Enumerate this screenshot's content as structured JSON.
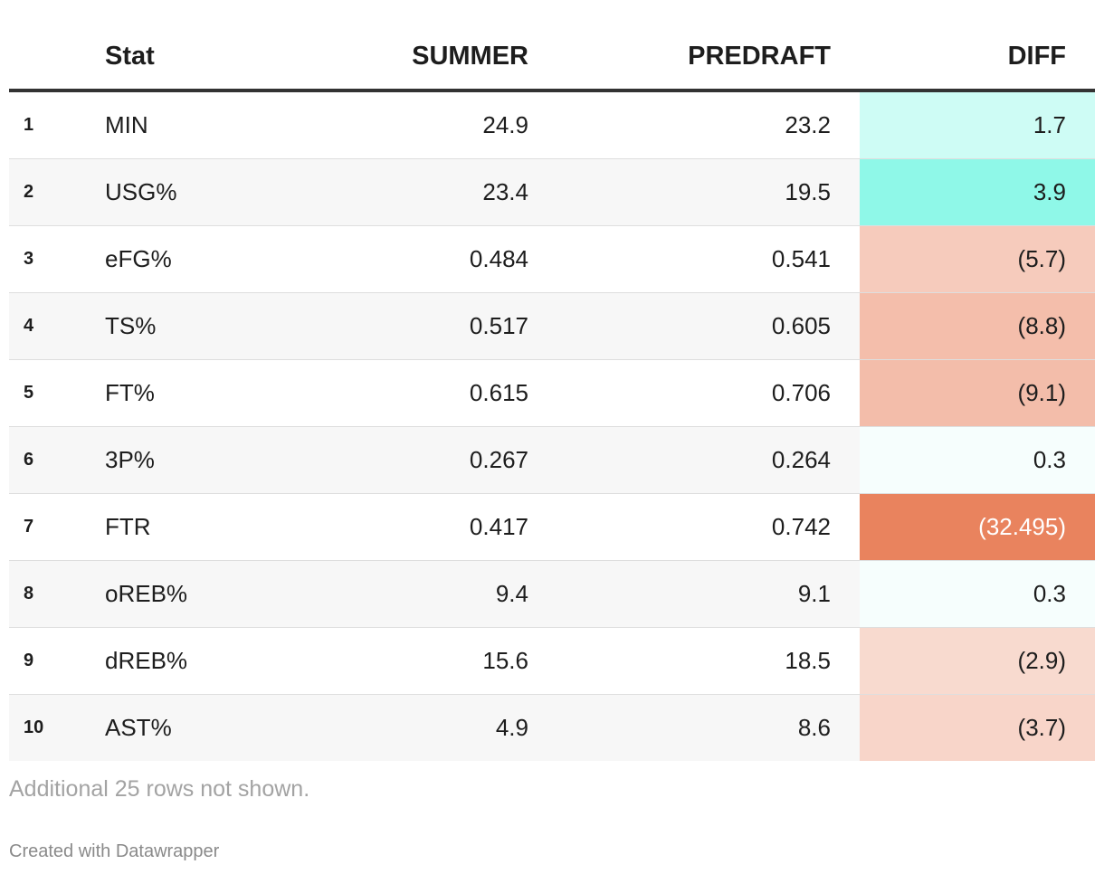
{
  "chart_data": {
    "type": "table",
    "columns": [
      "",
      "Stat",
      "SUMMER",
      "PREDRAFT",
      "DIFF"
    ],
    "rows": [
      {
        "rank": "1",
        "stat": "MIN",
        "summer": "24.9",
        "predraft": "23.2",
        "diff": "1.7",
        "diff_value": 1.7
      },
      {
        "rank": "2",
        "stat": "USG%",
        "summer": "23.4",
        "predraft": "19.5",
        "diff": "3.9",
        "diff_value": 3.9
      },
      {
        "rank": "3",
        "stat": "eFG%",
        "summer": "0.484",
        "predraft": "0.541",
        "diff": "(5.7)",
        "diff_value": -5.7
      },
      {
        "rank": "4",
        "stat": "TS%",
        "summer": "0.517",
        "predraft": "0.605",
        "diff": "(8.8)",
        "diff_value": -8.8
      },
      {
        "rank": "5",
        "stat": "FT%",
        "summer": "0.615",
        "predraft": "0.706",
        "diff": "(9.1)",
        "diff_value": -9.1
      },
      {
        "rank": "6",
        "stat": "3P%",
        "summer": "0.267",
        "predraft": "0.264",
        "diff": "0.3",
        "diff_value": 0.3
      },
      {
        "rank": "7",
        "stat": "FTR",
        "summer": "0.417",
        "predraft": "0.742",
        "diff": "(32.495)",
        "diff_value": -32.495
      },
      {
        "rank": "8",
        "stat": "oREB%",
        "summer": "9.4",
        "predraft": "9.1",
        "diff": "0.3",
        "diff_value": 0.3
      },
      {
        "rank": "9",
        "stat": "dREB%",
        "summer": "15.6",
        "predraft": "18.5",
        "diff": "(2.9)",
        "diff_value": -2.9
      },
      {
        "rank": "10",
        "stat": "AST%",
        "summer": "4.9",
        "predraft": "8.6",
        "diff": "(3.7)",
        "diff_value": -3.7
      }
    ],
    "colors": {
      "positive": "#8ff8e8",
      "negative": "#e9835e",
      "base": "#ffffff"
    }
  },
  "footnote": "Additional 25 rows not shown.",
  "credit": "Created with Datawrapper"
}
